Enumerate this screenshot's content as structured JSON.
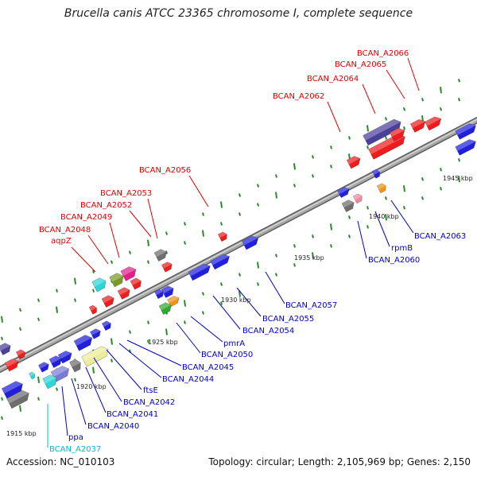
{
  "title": "Brucella canis ATCC 23365 chromosome I, complete sequence",
  "accession": "Accession: NC_010103",
  "topology": "Topology: circular; Length: 2,105,969 bp; Genes: 2,150",
  "colors": {
    "forward_label": "#e00000",
    "reverse_label": "#0000c8",
    "rna_label": "#00bcd4",
    "backbone": "#8c8c8c",
    "tick": "#2a8a2a"
  },
  "ruler_labels": [
    "1915 kbp",
    "1920 kbp",
    "1925 kbp",
    "1930 kbp",
    "1935 kbp",
    "1940 kbp",
    "1945 kbp"
  ],
  "top_labels": [
    "BCAN_A2066",
    "BCAN_A2065",
    "BCAN_A2064",
    "BCAN_A2062",
    "BCAN_A2056",
    "BCAN_A2053",
    "BCAN_A2052",
    "BCAN_A2049",
    "BCAN_A2048",
    "aqpZ"
  ],
  "bottom_labels": [
    "BCAN_A2063",
    "rpmB",
    "BCAN_A2060",
    "BCAN_A2057",
    "BCAN_A2055",
    "BCAN_A2054",
    "pmrA",
    "BCAN_A2050",
    "BCAN_A2045",
    "BCAN_A2044",
    "ftsE",
    "BCAN_A2042",
    "BCAN_A2041",
    "BCAN_A2040",
    "ppa",
    "BCAN_A2037"
  ],
  "feature_colors": [
    "red",
    "blue",
    "gray",
    "purple",
    "pink",
    "magenta",
    "cyan",
    "olive",
    "green",
    "orange",
    "khaki",
    "lightblue"
  ]
}
